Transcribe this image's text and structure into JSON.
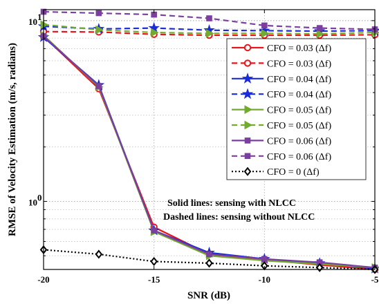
{
  "chart_data": {
    "type": "line",
    "xlabel": "SNR (dB)",
    "ylabel": "RMSE of Velocity Estimation (m/s, radians)",
    "xlim": [
      -20,
      -5
    ],
    "ylim": [
      0.42,
      11.5
    ],
    "yscale": "log",
    "grid": true,
    "legend_position": "right",
    "x": [
      -20,
      -17.5,
      -15,
      -12.5,
      -10,
      -7.5,
      -5
    ],
    "x_ticks": [
      -20,
      -15,
      -10,
      -5
    ],
    "x_tick_labels": [
      "-20",
      "-15",
      "-10",
      "-5"
    ],
    "y_tick_labels": [
      {
        "value": 1,
        "base": "10",
        "exp": "0"
      },
      {
        "value": 10,
        "base": "10",
        "exp": "1"
      }
    ],
    "annotations": [
      "Solid lines: sensing with NLCC",
      "Dashed lines: sensing without NLCC"
    ],
    "series": [
      {
        "name": "CFO = 0.03 (Δf)",
        "color": "#e8151b",
        "dash": "solid",
        "marker": "circle",
        "values": [
          8.2,
          4.2,
          0.72,
          0.51,
          0.475,
          0.445,
          0.42
        ]
      },
      {
        "name": "CFO = 0.03 (Δf)",
        "color": "#e8151b",
        "dash": "dashed",
        "marker": "circle",
        "values": [
          8.7,
          8.65,
          8.4,
          8.3,
          8.3,
          8.3,
          8.35
        ]
      },
      {
        "name": "CFO = 0.04 (Δf)",
        "color": "#1a2bd8",
        "dash": "solid",
        "marker": "star",
        "values": [
          8.1,
          4.4,
          0.69,
          0.52,
          0.48,
          0.455,
          0.425
        ]
      },
      {
        "name": "CFO = 0.04 (Δf)",
        "color": "#1a2bd8",
        "dash": "dashed",
        "marker": "star",
        "values": [
          9.3,
          9.0,
          9.1,
          8.85,
          8.8,
          8.75,
          8.8
        ]
      },
      {
        "name": "CFO = 0.05 (Δf)",
        "color": "#72ab2f",
        "dash": "solid",
        "marker": "triangle",
        "values": [
          8.3,
          4.3,
          0.68,
          0.5,
          0.47,
          0.45,
          0.43
        ]
      },
      {
        "name": "CFO = 0.05 (Δf)",
        "color": "#72ab2f",
        "dash": "dashed",
        "marker": "triangle",
        "values": [
          9.5,
          8.9,
          8.6,
          8.5,
          8.5,
          8.45,
          8.6
        ]
      },
      {
        "name": "CFO = 0.06 (Δf)",
        "color": "#7b3f9e",
        "dash": "solid",
        "marker": "square",
        "values": [
          8.2,
          4.35,
          0.69,
          0.51,
          0.48,
          0.46,
          0.43
        ]
      },
      {
        "name": "CFO = 0.06 (Δf)",
        "color": "#7b3f9e",
        "dash": "dashed",
        "marker": "square",
        "values": [
          11.2,
          11.0,
          10.8,
          10.3,
          9.4,
          9.1,
          8.95
        ]
      },
      {
        "name": "CFO = 0 (Δf)",
        "color": "#000000",
        "dash": "dotted",
        "marker": "diamond",
        "values": [
          0.54,
          0.51,
          0.465,
          0.455,
          0.44,
          0.43,
          0.42
        ]
      }
    ]
  }
}
